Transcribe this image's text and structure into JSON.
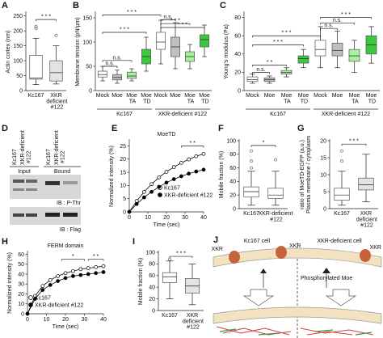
{
  "chart_data": [
    {
      "type": "box",
      "letter": "A",
      "ylabel": "Actin cortex (nm)",
      "categories": [
        "Kc167",
        "XKR deficient #122"
      ],
      "colors": [
        "#ffffff",
        "#e3e3e3"
      ],
      "ylim": [
        0,
        260
      ],
      "yticks": [
        0,
        50,
        100,
        150,
        200,
        250
      ],
      "boxes": [
        {
          "min": 20,
          "q1": 38,
          "median": 42,
          "q3": 118,
          "max": 175,
          "outliers": [
            215,
            208
          ]
        },
        {
          "min": 22,
          "q1": 32,
          "median": 60,
          "q3": 100,
          "max": 150,
          "outliers": [
            185
          ]
        }
      ],
      "annotations": [
        "* * *"
      ]
    },
    {
      "type": "box",
      "letter": "B",
      "ylabel": "Membrane tension (pN/μm)",
      "categories": [
        "Mock",
        "Moe",
        "Moe TA",
        "Moe TD",
        "Mock",
        "Moe",
        "Moe TA",
        "Moe TD"
      ],
      "groups": [
        "Kc167",
        "XKR-deficient #122"
      ],
      "colors": [
        "#ffffff",
        "#bfbfbf",
        "#a8f0a0",
        "#3cc83c",
        "#ffffff",
        "#bfbfbf",
        "#a8f0a0",
        "#3cc83c"
      ],
      "ylim": [
        0,
        160
      ],
      "yticks": [
        0,
        50,
        100,
        150
      ],
      "boxes": [
        {
          "min": 20,
          "q1": 28,
          "median": 33,
          "q3": 40,
          "max": 50,
          "outliers": []
        },
        {
          "min": 15,
          "q1": 22,
          "median": 27,
          "q3": 33,
          "max": 42,
          "outliers": []
        },
        {
          "min": 20,
          "q1": 25,
          "median": 30,
          "q3": 38,
          "max": 45,
          "outliers": []
        },
        {
          "min": 40,
          "q1": 55,
          "median": 70,
          "q3": 85,
          "max": 110,
          "outliers": []
        },
        {
          "min": 55,
          "q1": 85,
          "median": 100,
          "q3": 120,
          "max": 145,
          "outliers": []
        },
        {
          "min": 45,
          "q1": 70,
          "median": 90,
          "q3": 110,
          "max": 140,
          "outliers": []
        },
        {
          "min": 45,
          "q1": 60,
          "median": 70,
          "q3": 80,
          "max": 95,
          "outliers": []
        },
        {
          "min": 70,
          "q1": 90,
          "median": 105,
          "q3": 115,
          "max": 135,
          "outliers": []
        }
      ],
      "annotations": [
        "n.s.",
        "n.s.",
        "* * *",
        "* * *",
        "* * *",
        "n.s.",
        "* * *"
      ]
    },
    {
      "type": "box",
      "letter": "C",
      "ylabel": "Young's modulus (Pa)",
      "categories": [
        "Mock",
        "Moe",
        "Moe TA",
        "Moe TD",
        "Mock",
        "Moe",
        "Moe TA",
        "Moe TD"
      ],
      "groups": [
        "Kc167",
        "XKR-deficient #122"
      ],
      "colors": [
        "#ffffff",
        "#bfbfbf",
        "#a8f0a0",
        "#3cc83c",
        "#ffffff",
        "#bfbfbf",
        "#a8f0a0",
        "#3cc83c"
      ],
      "ylim": [
        0,
        85
      ],
      "yticks": [
        0,
        20,
        40,
        60,
        80
      ],
      "boxes": [
        {
          "min": 8,
          "q1": 10,
          "median": 12,
          "q3": 15,
          "max": 18,
          "outliers": []
        },
        {
          "min": 8,
          "q1": 10,
          "median": 12,
          "q3": 14,
          "max": 16,
          "outliers": []
        },
        {
          "min": 15,
          "q1": 18,
          "median": 20,
          "q3": 22,
          "max": 25,
          "outliers": []
        },
        {
          "min": 25,
          "q1": 30,
          "median": 35,
          "q3": 38,
          "max": 45,
          "outliers": []
        },
        {
          "min": 25,
          "q1": 38,
          "median": 45,
          "q3": 55,
          "max": 70,
          "outliers": []
        },
        {
          "min": 25,
          "q1": 38,
          "median": 44,
          "q3": 52,
          "max": 65,
          "outliers": []
        },
        {
          "min": 20,
          "q1": 32,
          "median": 38,
          "q3": 45,
          "max": 55,
          "outliers": []
        },
        {
          "min": 30,
          "q1": 40,
          "median": 50,
          "q3": 60,
          "max": 70,
          "outliers": []
        }
      ],
      "annotations": [
        "n.s.",
        "* *",
        "* * *",
        "* * *",
        "n.s.",
        "n.s.",
        "* * *"
      ]
    },
    {
      "type": "line",
      "letter": "E",
      "title": "MoeTD",
      "xlabel": "Time (sec)",
      "ylabel": "Normalized intensity (%)",
      "xlim": [
        0,
        40
      ],
      "xticks": [
        0,
        10,
        20,
        30,
        40
      ],
      "ylim": [
        0,
        27
      ],
      "yticks": [
        0,
        5,
        10,
        15,
        20,
        25
      ],
      "x": [
        0,
        4,
        8,
        12,
        16,
        20,
        24,
        28,
        32,
        36,
        40
      ],
      "series": [
        {
          "name": "Kc167",
          "color": "#000000",
          "fill": "#ffffff",
          "values": [
            0,
            4.1,
            7.6,
            10.5,
            13.1,
            15.2,
            17.0,
            18.6,
            19.9,
            21.1,
            22.0
          ]
        },
        {
          "name": "XKR-deficient #122",
          "color": "#000000",
          "fill": "#000000",
          "values": [
            0,
            3.0,
            5.5,
            7.6,
            9.5,
            11.1,
            12.4,
            13.5,
            14.5,
            15.3,
            16.0
          ]
        }
      ],
      "annotations": [
        "* *"
      ]
    },
    {
      "type": "box",
      "letter": "F",
      "ylabel": "Mobile fraction (%)",
      "categories": [
        "Kc167",
        "XKR-deficient #122"
      ],
      "colors": [
        "#ffffff",
        "#ffffff"
      ],
      "ylim": [
        0,
        100
      ],
      "yticks": [
        0,
        20,
        40,
        60,
        80,
        100
      ],
      "boxes": [
        {
          "min": 5,
          "q1": 17,
          "median": 25,
          "q3": 32,
          "max": 55,
          "outliers": [
            60,
            70,
            85
          ]
        },
        {
          "min": 5,
          "q1": 15,
          "median": 20,
          "q3": 30,
          "max": 55,
          "outliers": [
            72
          ]
        }
      ],
      "annotations": [
        "*"
      ]
    },
    {
      "type": "box",
      "letter": "G",
      "ylabel": [
        "Plasma membrane / cytoplasm",
        "ratio of MoeTD-EGFP (a.u.)"
      ],
      "categories": [
        "Kc167",
        "XKR deficient #122"
      ],
      "colors": [
        "#ffffff",
        "#e3e3e3"
      ],
      "ylim": [
        0,
        20
      ],
      "yticks": [
        0,
        5,
        10,
        15,
        20
      ],
      "boxes": [
        {
          "min": 1,
          "q1": 2.5,
          "median": 4,
          "q3": 6,
          "max": 11,
          "outliers": [
            14,
            17
          ]
        },
        {
          "min": 2,
          "q1": 5.5,
          "median": 7,
          "q3": 9,
          "max": 16,
          "outliers": []
        }
      ],
      "annotations": [
        "* * *"
      ]
    },
    {
      "type": "line",
      "letter": "H",
      "title": "FERM domain",
      "xlabel": "Time (sec)",
      "ylabel": "Normalized intensity (%)",
      "xlim": [
        0,
        40
      ],
      "xticks": [
        0,
        10,
        20,
        30,
        40
      ],
      "ylim": [
        0,
        62
      ],
      "yticks": [
        0,
        10,
        20,
        30,
        40,
        50,
        60
      ],
      "x": [
        0,
        4,
        8,
        12,
        16,
        20,
        24,
        28,
        32,
        36,
        40
      ],
      "series": [
        {
          "name": "Kc167",
          "color": "#000000",
          "fill": "#ffffff",
          "values": [
            0,
            18,
            28,
            34,
            38,
            41,
            43,
            45,
            46,
            47,
            48
          ]
        },
        {
          "name": "XKR-deficient #122",
          "color": "#000000",
          "fill": "#000000",
          "values": [
            0,
            15,
            24,
            29,
            33,
            36,
            38,
            39,
            40,
            41,
            42
          ]
        }
      ],
      "annotations": [
        "*",
        "* *"
      ]
    },
    {
      "type": "box",
      "letter": "I",
      "ylabel": "Mobile fraction (%)",
      "categories": [
        "Kc167",
        "XKR deficient #122"
      ],
      "colors": [
        "#ffffff",
        "#e3e3e3"
      ],
      "ylim": [
        0,
        100
      ],
      "yticks": [
        0,
        20,
        40,
        60,
        80,
        100
      ],
      "boxes": [
        {
          "min": 20,
          "q1": 48,
          "median": 58,
          "q3": 65,
          "max": 85,
          "outliers": [
            88
          ]
        },
        {
          "min": 10,
          "q1": 30,
          "median": 42,
          "q3": 55,
          "max": 80,
          "outliers": []
        }
      ],
      "annotations": [
        "* * *"
      ]
    }
  ],
  "blot": {
    "letter": "D",
    "lanes": [
      "Kc167",
      "XKR-deficient #122",
      "Kc167",
      "XKR-deficient #122"
    ],
    "sections": [
      "Input",
      "Bound"
    ],
    "probes": [
      "IB : P-Thr",
      "IB : Flag"
    ]
  },
  "diagram": {
    "letter": "J",
    "cells": [
      "Kc167 cell",
      "XKR-deficient cell"
    ],
    "proteins": [
      "XKR",
      "XKR",
      "XKR"
    ],
    "label": "Phosphorylated Moe"
  }
}
